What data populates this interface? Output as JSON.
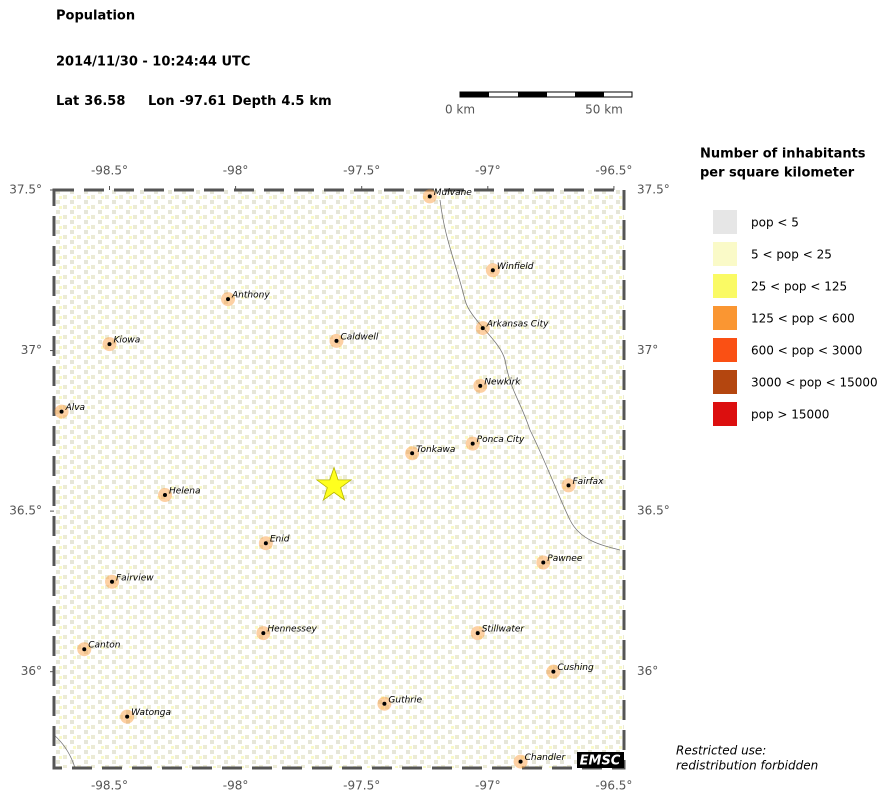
{
  "header": {
    "title": "Population",
    "datetime": "2014/11/30 - 10:24:44 UTC",
    "location": [
      {
        "label": "Lat",
        "value": 36.58
      },
      {
        "label": "Lon",
        "value": -97.61
      },
      {
        "label": "Depth",
        "value": 4.5,
        "unit": "km"
      }
    ]
  },
  "scale_bar": {
    "start": "0 km",
    "end": "50 km"
  },
  "map": {
    "xlim": [
      -98.72,
      -96.46
    ],
    "ylim": [
      35.7,
      37.5
    ],
    "xticks": [
      {
        "value": -98.5,
        "label": "-98.5°"
      },
      {
        "value": -98,
        "label": "-98°"
      },
      {
        "value": -97.5,
        "label": "-97.5°"
      },
      {
        "value": -97,
        "label": "-97°"
      },
      {
        "value": -96.5,
        "label": "-96.5°"
      }
    ],
    "yticks": [
      {
        "value": 37.5,
        "label": "37.5°"
      },
      {
        "value": 37,
        "label": "37°"
      },
      {
        "value": 36.5,
        "label": "36.5°"
      },
      {
        "value": 36,
        "label": "36°"
      }
    ],
    "cities": [
      {
        "name": "Mulvane",
        "lon": -97.23,
        "lat": 37.48
      },
      {
        "name": "Winfield",
        "lon": -96.98,
        "lat": 37.25
      },
      {
        "name": "Anthony",
        "lon": -98.03,
        "lat": 37.16
      },
      {
        "name": "Arkansas City",
        "lon": -97.02,
        "lat": 37.07
      },
      {
        "name": "Caldwell",
        "lon": -97.6,
        "lat": 37.03
      },
      {
        "name": "Kiowa",
        "lon": -98.5,
        "lat": 37.02
      },
      {
        "name": "Newkirk",
        "lon": -97.03,
        "lat": 36.89
      },
      {
        "name": "Alva",
        "lon": -98.69,
        "lat": 36.81
      },
      {
        "name": "Ponca City",
        "lon": -97.06,
        "lat": 36.71
      },
      {
        "name": "Tonkawa",
        "lon": -97.3,
        "lat": 36.68
      },
      {
        "name": "Fairfax",
        "lon": -96.68,
        "lat": 36.58
      },
      {
        "name": "Helena",
        "lon": -98.28,
        "lat": 36.55
      },
      {
        "name": "Enid",
        "lon": -97.88,
        "lat": 36.4
      },
      {
        "name": "Pawnee",
        "lon": -96.78,
        "lat": 36.34
      },
      {
        "name": "Fairview",
        "lon": -98.49,
        "lat": 36.28
      },
      {
        "name": "Hennessey",
        "lon": -97.89,
        "lat": 36.12
      },
      {
        "name": "Stillwater",
        "lon": -97.04,
        "lat": 36.12
      },
      {
        "name": "Canton",
        "lon": -98.6,
        "lat": 36.07
      },
      {
        "name": "Cushing",
        "lon": -96.74,
        "lat": 36.0
      },
      {
        "name": "Guthrie",
        "lon": -97.41,
        "lat": 35.9
      },
      {
        "name": "Watonga",
        "lon": -98.43,
        "lat": 35.86
      },
      {
        "name": "Chandler",
        "lon": -96.87,
        "lat": 35.72
      }
    ],
    "badge": "EMSC"
  },
  "legend": {
    "title": [
      "Number of inhabitants",
      "per square kilometer"
    ],
    "items": [
      {
        "label": "pop < 5",
        "color": "#e6e6e6"
      },
      {
        "label": "5 < pop < 25",
        "color": "#fafac8"
      },
      {
        "label": "25 < pop < 125",
        "color": "#fafa64"
      },
      {
        "label": "125 < pop < 600",
        "color": "#fa9632"
      },
      {
        "label": "600 < pop < 3000",
        "color": "#fa5014"
      },
      {
        "label": "3000 < pop < 15000",
        "color": "#b4460f"
      },
      {
        "label": "pop > 15000",
        "color": "#dc0f0f"
      }
    ]
  },
  "notice": [
    "Restricted use:",
    "redistribution forbidden"
  ]
}
